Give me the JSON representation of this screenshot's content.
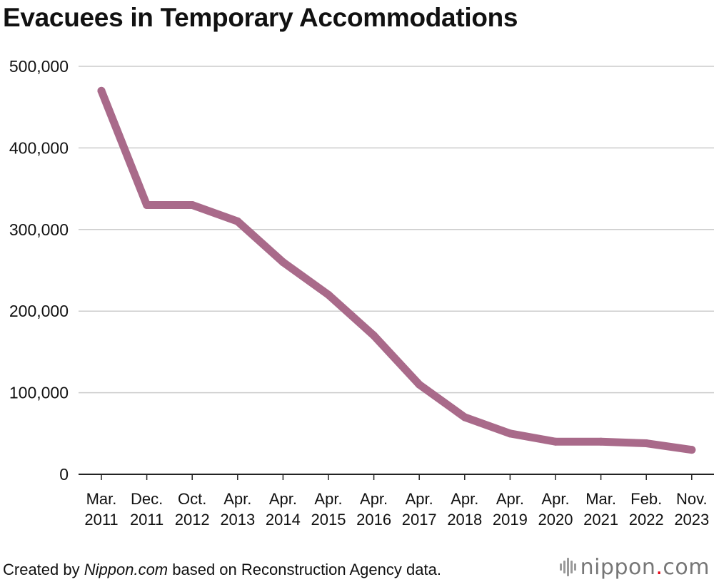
{
  "title": "Evacuees in Temporary Accommodations",
  "footer": {
    "prefix": "Created by ",
    "source_name": "Nippon.com",
    "suffix": " based on Reconstruction Agency data."
  },
  "logo": {
    "name": "nippon",
    "dot": ".",
    "tld": "com"
  },
  "colors": {
    "line": "#a96a8a",
    "grid": "#cccccc",
    "axis": "#222222",
    "logo_dot": "#e60012"
  },
  "chart_data": {
    "type": "line",
    "title": "Evacuees in Temporary Accommodations",
    "xlabel": "",
    "ylabel": "",
    "ylim": [
      0,
      500000
    ],
    "yticks": [
      0,
      100000,
      200000,
      300000,
      400000,
      500000
    ],
    "ytick_labels": [
      "0",
      "100,000",
      "200,000",
      "300,000",
      "400,000",
      "500,000"
    ],
    "grid": true,
    "categories": [
      [
        "Mar.",
        "2011"
      ],
      [
        "Dec.",
        "2011"
      ],
      [
        "Oct.",
        "2012"
      ],
      [
        "Apr.",
        "2013"
      ],
      [
        "Apr.",
        "2014"
      ],
      [
        "Apr.",
        "2015"
      ],
      [
        "Apr.",
        "2016"
      ],
      [
        "Apr.",
        "2017"
      ],
      [
        "Apr.",
        "2018"
      ],
      [
        "Apr.",
        "2019"
      ],
      [
        "Apr.",
        "2020"
      ],
      [
        "Mar.",
        "2021"
      ],
      [
        "Feb.",
        "2022"
      ],
      [
        "Nov.",
        "2023"
      ]
    ],
    "series": [
      {
        "values": [
          470000,
          330000,
          330000,
          310000,
          260000,
          220000,
          170000,
          110000,
          70000,
          50000,
          40000,
          40000,
          38000,
          30000
        ]
      }
    ]
  }
}
